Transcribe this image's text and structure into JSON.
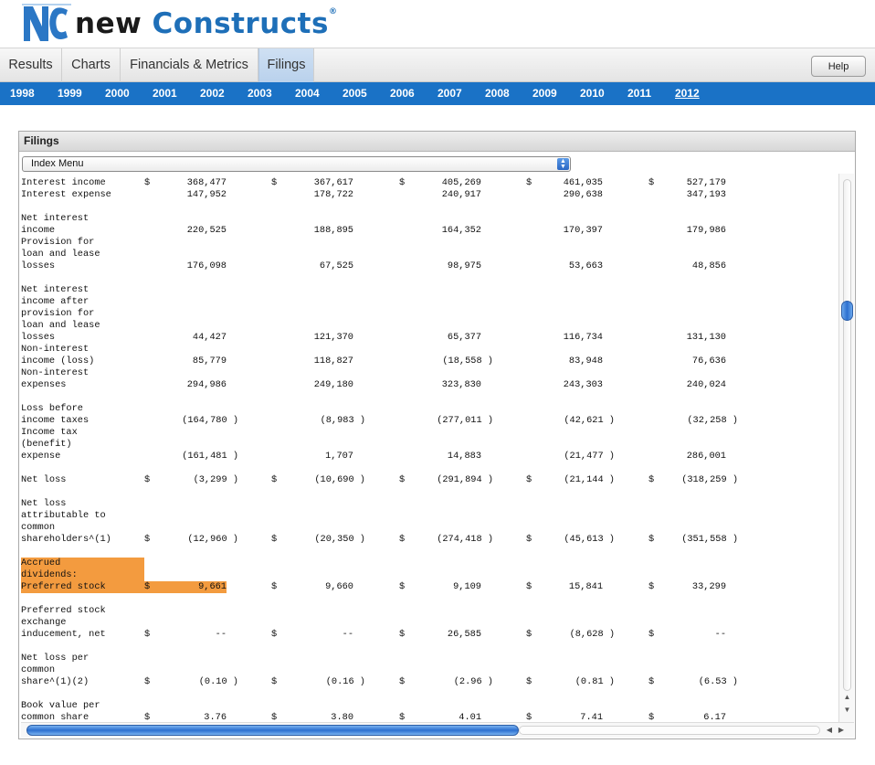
{
  "logo": {
    "mark": "NC",
    "word1": "new",
    "word2": "Constructs",
    "reg": "®"
  },
  "tabs": [
    {
      "label": "Results",
      "active": false
    },
    {
      "label": "Charts",
      "active": false
    },
    {
      "label": "Financials & Metrics",
      "active": false
    },
    {
      "label": "Filings",
      "active": true
    }
  ],
  "help_label": "Help",
  "years": [
    "1998",
    "1999",
    "2000",
    "2001",
    "2002",
    "2003",
    "2004",
    "2005",
    "2006",
    "2007",
    "2008",
    "2009",
    "2010",
    "2011",
    "2012"
  ],
  "current_year": "2012",
  "panel": {
    "title": "Filings",
    "select_value": "Index Menu"
  },
  "filing_rows": [
    {
      "label": "Interest income",
      "hl": false,
      "cells": [
        {
          "d": true,
          "v": "368,477"
        },
        {
          "d": true,
          "v": "367,617"
        },
        {
          "d": true,
          "v": "405,269"
        },
        {
          "d": true,
          "v": "461,035"
        },
        {
          "d": true,
          "v": "527,179"
        }
      ]
    },
    {
      "label": "Interest expense",
      "hl": false,
      "cells": [
        {
          "d": false,
          "v": "147,952"
        },
        {
          "d": false,
          "v": "178,722"
        },
        {
          "d": false,
          "v": "240,917"
        },
        {
          "d": false,
          "v": "290,638"
        },
        {
          "d": false,
          "v": "347,193"
        }
      ]
    },
    {
      "label": "",
      "cells": []
    },
    {
      "label": "Net interest",
      "cells": []
    },
    {
      "label": "income",
      "hl": false,
      "cells": [
        {
          "d": false,
          "v": "220,525"
        },
        {
          "d": false,
          "v": "188,895"
        },
        {
          "d": false,
          "v": "164,352"
        },
        {
          "d": false,
          "v": "170,397"
        },
        {
          "d": false,
          "v": "179,986"
        }
      ]
    },
    {
      "label": "Provision for",
      "cells": []
    },
    {
      "label": "loan and lease",
      "cells": []
    },
    {
      "label": "losses",
      "hl": false,
      "cells": [
        {
          "d": false,
          "v": "176,098"
        },
        {
          "d": false,
          "v": "67,525"
        },
        {
          "d": false,
          "v": "98,975"
        },
        {
          "d": false,
          "v": "53,663"
        },
        {
          "d": false,
          "v": "48,856"
        }
      ]
    },
    {
      "label": "",
      "cells": []
    },
    {
      "label": "Net interest",
      "cells": []
    },
    {
      "label": "income after",
      "cells": []
    },
    {
      "label": "provision for",
      "cells": []
    },
    {
      "label": "loan and lease",
      "cells": []
    },
    {
      "label": "losses",
      "hl": false,
      "cells": [
        {
          "d": false,
          "v": "44,427"
        },
        {
          "d": false,
          "v": "121,370"
        },
        {
          "d": false,
          "v": "65,377"
        },
        {
          "d": false,
          "v": "116,734"
        },
        {
          "d": false,
          "v": "131,130"
        }
      ]
    },
    {
      "label": "Non-interest",
      "cells": []
    },
    {
      "label": "income (loss)",
      "hl": false,
      "cells": [
        {
          "d": false,
          "v": "85,779"
        },
        {
          "d": false,
          "v": "118,827"
        },
        {
          "d": false,
          "v": "(18,558 )"
        },
        {
          "d": false,
          "v": "83,948"
        },
        {
          "d": false,
          "v": "76,636"
        }
      ]
    },
    {
      "label": "Non-interest",
      "cells": []
    },
    {
      "label": "expenses",
      "hl": false,
      "cells": [
        {
          "d": false,
          "v": "294,986"
        },
        {
          "d": false,
          "v": "249,180"
        },
        {
          "d": false,
          "v": "323,830"
        },
        {
          "d": false,
          "v": "243,303"
        },
        {
          "d": false,
          "v": "240,024"
        }
      ]
    },
    {
      "label": "",
      "cells": []
    },
    {
      "label": "Loss before",
      "cells": []
    },
    {
      "label": "income taxes",
      "hl": false,
      "cells": [
        {
          "d": false,
          "v": "(164,780 )"
        },
        {
          "d": false,
          "v": "(8,983 )"
        },
        {
          "d": false,
          "v": "(277,011 )"
        },
        {
          "d": false,
          "v": "(42,621 )"
        },
        {
          "d": false,
          "v": "(32,258 )"
        }
      ]
    },
    {
      "label": "Income tax",
      "cells": []
    },
    {
      "label": "(benefit)",
      "cells": []
    },
    {
      "label": "expense",
      "hl": false,
      "cells": [
        {
          "d": false,
          "v": "(161,481 )"
        },
        {
          "d": false,
          "v": "1,707"
        },
        {
          "d": false,
          "v": "14,883"
        },
        {
          "d": false,
          "v": "(21,477 )"
        },
        {
          "d": false,
          "v": "286,001"
        }
      ]
    },
    {
      "label": "",
      "cells": []
    },
    {
      "label": "Net loss",
      "hl": false,
      "cells": [
        {
          "d": true,
          "v": "(3,299 )"
        },
        {
          "d": true,
          "v": "(10,690 )"
        },
        {
          "d": true,
          "v": "(291,894 )"
        },
        {
          "d": true,
          "v": "(21,144 )"
        },
        {
          "d": true,
          "v": "(318,259 )"
        }
      ]
    },
    {
      "label": "",
      "cells": []
    },
    {
      "label": "Net loss",
      "cells": []
    },
    {
      "label": "attributable to",
      "cells": []
    },
    {
      "label": "common",
      "cells": []
    },
    {
      "label": "shareholders^(1)",
      "hl": false,
      "cells": [
        {
          "d": true,
          "v": "(12,960 )"
        },
        {
          "d": true,
          "v": "(20,350 )"
        },
        {
          "d": true,
          "v": "(274,418 )"
        },
        {
          "d": true,
          "v": "(45,613 )"
        },
        {
          "d": true,
          "v": "(351,558 )"
        }
      ]
    },
    {
      "label": "",
      "cells": []
    },
    {
      "label": "Accrued",
      "hl": true,
      "cells": []
    },
    {
      "label": "dividends:",
      "hl": true,
      "cells": []
    },
    {
      "label": "Preferred stock",
      "hl": true,
      "cells": [
        {
          "d": true,
          "v": "9,661"
        },
        {
          "d": true,
          "v": "9,660"
        },
        {
          "d": true,
          "v": "9,109"
        },
        {
          "d": true,
          "v": "15,841"
        },
        {
          "d": true,
          "v": "33,299"
        }
      ]
    },
    {
      "label": "",
      "cells": []
    },
    {
      "label": "Preferred stock",
      "cells": []
    },
    {
      "label": "exchange",
      "cells": []
    },
    {
      "label": "inducement, net",
      "hl": false,
      "cells": [
        {
          "d": true,
          "v": "--"
        },
        {
          "d": true,
          "v": "--"
        },
        {
          "d": true,
          "v": "26,585"
        },
        {
          "d": true,
          "v": "(8,628 )"
        },
        {
          "d": true,
          "v": "--"
        }
      ]
    },
    {
      "label": "",
      "cells": []
    },
    {
      "label": "Net loss per",
      "cells": []
    },
    {
      "label": "common",
      "cells": []
    },
    {
      "label": "share^(1)(2)",
      "hl": false,
      "cells": [
        {
          "d": true,
          "v": "(0.10 )"
        },
        {
          "d": true,
          "v": "(0.16 )"
        },
        {
          "d": true,
          "v": "(2.96 )"
        },
        {
          "d": true,
          "v": "(0.81 )"
        },
        {
          "d": true,
          "v": "(6.53 )"
        }
      ]
    },
    {
      "label": "",
      "cells": []
    },
    {
      "label": "Book value per",
      "cells": []
    },
    {
      "label": "common share",
      "hl": false,
      "cells": [
        {
          "d": true,
          "v": "3.76"
        },
        {
          "d": true,
          "v": "3.80"
        },
        {
          "d": true,
          "v": "4.01"
        },
        {
          "d": true,
          "v": "7.41"
        },
        {
          "d": true,
          "v": "6.17"
        }
      ]
    }
  ],
  "dollar_sign": "$"
}
